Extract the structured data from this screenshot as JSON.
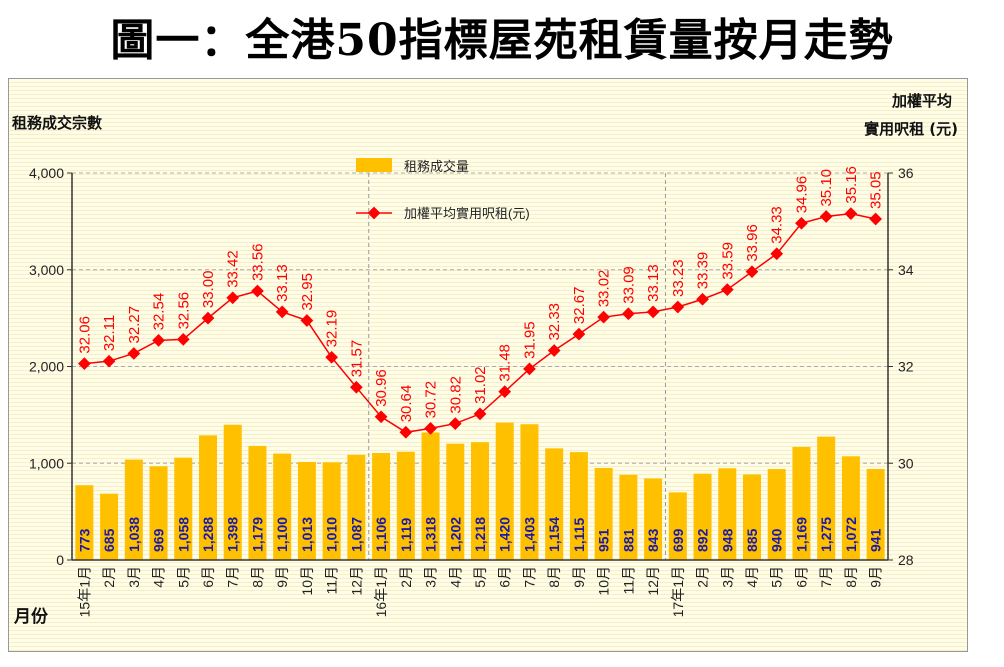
{
  "title": "圖一：全港50指標屋苑租賃量按月走勢",
  "chart_data": {
    "type": "bar+line",
    "title": "圖一：全港50指標屋苑租賃量按月走勢",
    "xlabel": "月份",
    "ylabel": "租務成交宗數",
    "y2label_line1": "加權平均",
    "y2label_line2": "實用呎租 (元)",
    "ylim": [
      0,
      4000
    ],
    "y2lim": [
      28,
      36
    ],
    "yticks": [
      "0",
      "1,000",
      "2,000",
      "3,000",
      "4,000"
    ],
    "y2ticks": [
      "28",
      "30",
      "32",
      "34",
      "36"
    ],
    "legend_position": "top-center",
    "categories": [
      "15年1月",
      "2月",
      "3月",
      "4月",
      "5月",
      "6月",
      "7月",
      "8月",
      "9月",
      "10月",
      "11月",
      "12月",
      "16年1月",
      "2月",
      "3月",
      "4月",
      "5月",
      "6月",
      "7月",
      "8月",
      "9月",
      "10月",
      "11月",
      "12月",
      "17年1月",
      "2月",
      "3月",
      "4月",
      "5月",
      "6月",
      "7月",
      "8月",
      "9月"
    ],
    "series": [
      {
        "name": "租務成交量",
        "type": "bar",
        "axis": "left",
        "color": "#ffc000",
        "values": [
          773,
          685,
          1038,
          969,
          1058,
          1288,
          1398,
          1179,
          1100,
          1013,
          1010,
          1087,
          1106,
          1119,
          1318,
          1202,
          1218,
          1420,
          1403,
          1154,
          1115,
          951,
          881,
          843,
          699,
          892,
          948,
          885,
          940,
          1169,
          1275,
          1072,
          941
        ],
        "labels": [
          "773",
          "685",
          "1,038",
          "969",
          "1,058",
          "1,288",
          "1,398",
          "1,179",
          "1,100",
          "1,013",
          "1,010",
          "1,087",
          "1,106",
          "1,119",
          "1,318",
          "1,202",
          "1,218",
          "1,420",
          "1,403",
          "1,154",
          "1,115",
          "951",
          "881",
          "843",
          "699",
          "892",
          "948",
          "885",
          "940",
          "1,169",
          "1,275",
          "1,072",
          "941"
        ]
      },
      {
        "name": "加權平均實用呎租(元)",
        "type": "line",
        "axis": "right",
        "color": "#ff0000",
        "values": [
          32.06,
          32.11,
          32.27,
          32.54,
          32.56,
          33.0,
          33.42,
          33.56,
          33.13,
          32.95,
          32.19,
          31.57,
          30.96,
          30.64,
          30.72,
          30.82,
          31.02,
          31.48,
          31.95,
          32.33,
          32.67,
          33.02,
          33.09,
          33.13,
          33.23,
          33.39,
          33.59,
          33.96,
          34.33,
          34.96,
          35.1,
          35.16,
          35.05
        ]
      }
    ]
  }
}
